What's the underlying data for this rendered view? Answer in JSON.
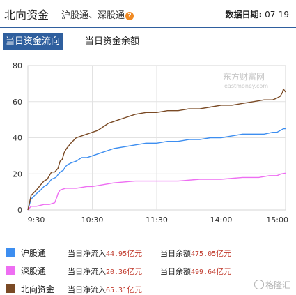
{
  "header": {
    "title": "北向资金",
    "subtitle": "沪股通、深股通",
    "date_label": "数据日期:",
    "date_value": "07-19"
  },
  "tabs": [
    {
      "label": "当日资金流向",
      "active": true
    },
    {
      "label": "当日资金余额",
      "active": false
    }
  ],
  "watermark": {
    "main": "东方财富网",
    "sub": "eastmoney.com"
  },
  "brand": "格隆汇",
  "colors": {
    "hgt": "#3d8ef0",
    "sgt": "#ee6ef2",
    "north": "#7a4a25",
    "accent": "#2f5f9e"
  },
  "legend": [
    {
      "name": "沪股通",
      "flow_label": "当日净流入",
      "flow_value": "44.95",
      "flow_unit": "亿元",
      "bal_label": "当日余额",
      "bal_value": "475.05",
      "bal_unit": "亿元"
    },
    {
      "name": "深股通",
      "flow_label": "当日净流入",
      "flow_value": "20.36",
      "flow_unit": "亿元",
      "bal_label": "当日余额",
      "bal_value": "499.64",
      "bal_unit": "亿元"
    },
    {
      "name": "北向资金",
      "flow_label": "当日净流入",
      "flow_value": "65.31",
      "flow_unit": "亿元",
      "bal_label": "",
      "bal_value": "",
      "bal_unit": ""
    }
  ],
  "chart_data": {
    "type": "line",
    "title": "",
    "xlabel": "",
    "ylabel": "",
    "ylim": [
      0,
      80
    ],
    "yticks": [
      0,
      20,
      40,
      60,
      80
    ],
    "xlim_minutes": [
      0,
      240
    ],
    "xticks": [
      {
        "label": "9:30",
        "t": 0
      },
      {
        "label": "10:30",
        "t": 60
      },
      {
        "label": "11:30",
        "t": 120
      },
      {
        "label": "14:00",
        "t": 180
      },
      {
        "label": "15:00",
        "t": 240
      }
    ],
    "grid": true,
    "series": [
      {
        "name": "沪股通",
        "color": "#3d8ef0",
        "points": [
          [
            0,
            0
          ],
          [
            3,
            6
          ],
          [
            8,
            9
          ],
          [
            12,
            11
          ],
          [
            15,
            13
          ],
          [
            18,
            14
          ],
          [
            22,
            17
          ],
          [
            26,
            18
          ],
          [
            30,
            21
          ],
          [
            33,
            22
          ],
          [
            35,
            24
          ],
          [
            37,
            25
          ],
          [
            40,
            26
          ],
          [
            45,
            27
          ],
          [
            50,
            29
          ],
          [
            55,
            29
          ],
          [
            60,
            30
          ],
          [
            70,
            32
          ],
          [
            80,
            34
          ],
          [
            90,
            35
          ],
          [
            100,
            36
          ],
          [
            110,
            37
          ],
          [
            120,
            37
          ],
          [
            130,
            38
          ],
          [
            140,
            38
          ],
          [
            150,
            39
          ],
          [
            160,
            39
          ],
          [
            170,
            40
          ],
          [
            180,
            40
          ],
          [
            190,
            41
          ],
          [
            200,
            42
          ],
          [
            210,
            42
          ],
          [
            220,
            42
          ],
          [
            228,
            43
          ],
          [
            232,
            43
          ],
          [
            235,
            44
          ],
          [
            238,
            45
          ],
          [
            240,
            45
          ]
        ]
      },
      {
        "name": "深股通",
        "color": "#ee6ef2",
        "points": [
          [
            0,
            0
          ],
          [
            3,
            2
          ],
          [
            8,
            2
          ],
          [
            15,
            3
          ],
          [
            20,
            3
          ],
          [
            25,
            4
          ],
          [
            27,
            7
          ],
          [
            28,
            9
          ],
          [
            30,
            11
          ],
          [
            35,
            12
          ],
          [
            45,
            12
          ],
          [
            55,
            13
          ],
          [
            60,
            13
          ],
          [
            70,
            14
          ],
          [
            80,
            15
          ],
          [
            100,
            16
          ],
          [
            120,
            16
          ],
          [
            140,
            16
          ],
          [
            160,
            17
          ],
          [
            180,
            17
          ],
          [
            200,
            18
          ],
          [
            215,
            18
          ],
          [
            225,
            19
          ],
          [
            232,
            19
          ],
          [
            236,
            20
          ],
          [
            240,
            20.36
          ]
        ]
      },
      {
        "name": "北向资金",
        "color": "#7a4a25",
        "points": [
          [
            0,
            0
          ],
          [
            3,
            8
          ],
          [
            8,
            11
          ],
          [
            12,
            14
          ],
          [
            15,
            16
          ],
          [
            18,
            17
          ],
          [
            22,
            21
          ],
          [
            25,
            21
          ],
          [
            28,
            23
          ],
          [
            30,
            27
          ],
          [
            32,
            28
          ],
          [
            34,
            32
          ],
          [
            36,
            34
          ],
          [
            40,
            37
          ],
          [
            45,
            40
          ],
          [
            50,
            41
          ],
          [
            55,
            42
          ],
          [
            60,
            43
          ],
          [
            65,
            44
          ],
          [
            70,
            46
          ],
          [
            75,
            48
          ],
          [
            80,
            49
          ],
          [
            85,
            50
          ],
          [
            90,
            51
          ],
          [
            95,
            52
          ],
          [
            100,
            53
          ],
          [
            110,
            54
          ],
          [
            120,
            54
          ],
          [
            130,
            55
          ],
          [
            140,
            55
          ],
          [
            150,
            56
          ],
          [
            160,
            56
          ],
          [
            170,
            57
          ],
          [
            180,
            58
          ],
          [
            190,
            58
          ],
          [
            200,
            59
          ],
          [
            210,
            60
          ],
          [
            220,
            61
          ],
          [
            228,
            61
          ],
          [
            232,
            62
          ],
          [
            235,
            63
          ],
          [
            237,
            65
          ],
          [
            238,
            67
          ],
          [
            240,
            65.31
          ]
        ]
      }
    ]
  }
}
